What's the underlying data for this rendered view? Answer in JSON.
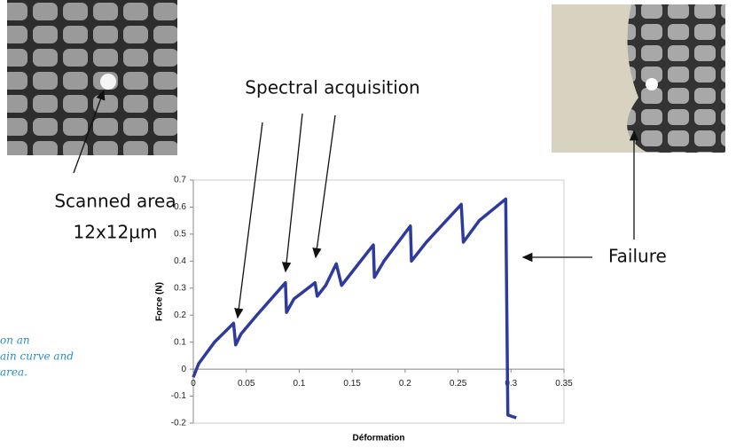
{
  "chart_data": {
    "type": "line",
    "x_label": "Déformation",
    "y_label": "Force (N)",
    "annotations": {
      "spectral": "Spectral acquisition",
      "scanned_1": "Scanned area",
      "scanned_2": "12x12µm",
      "failure": "Failure"
    },
    "caption": [
      "on an",
      "ain curve and",
      "area."
    ],
    "xlim": [
      0,
      0.35
    ],
    "xticks": [
      0,
      0.05,
      0.1,
      0.15,
      0.2,
      0.25,
      0.3,
      0.35
    ],
    "ylim": [
      -0.2,
      0.7
    ],
    "yticks": [
      -0.2,
      -0.1,
      0,
      0.1,
      0.2,
      0.3,
      0.4,
      0.5,
      0.6,
      0.7
    ],
    "series": [
      {
        "color": "#2f3b9c",
        "x": [
          0,
          0.005,
          0.02,
          0.038,
          0.04,
          0.045,
          0.06,
          0.087,
          0.088,
          0.095,
          0.115,
          0.117,
          0.125,
          0.135,
          0.14,
          0.15,
          0.17,
          0.171,
          0.18,
          0.205,
          0.206,
          0.22,
          0.253,
          0.255,
          0.27,
          0.295,
          0.297,
          0.305
        ],
        "values": [
          -0.03,
          0.02,
          0.1,
          0.17,
          0.09,
          0.13,
          0.2,
          0.32,
          0.21,
          0.26,
          0.32,
          0.27,
          0.31,
          0.39,
          0.31,
          0.36,
          0.46,
          0.34,
          0.4,
          0.53,
          0.4,
          0.47,
          0.61,
          0.47,
          0.55,
          0.63,
          -0.17,
          -0.18
        ]
      }
    ]
  }
}
